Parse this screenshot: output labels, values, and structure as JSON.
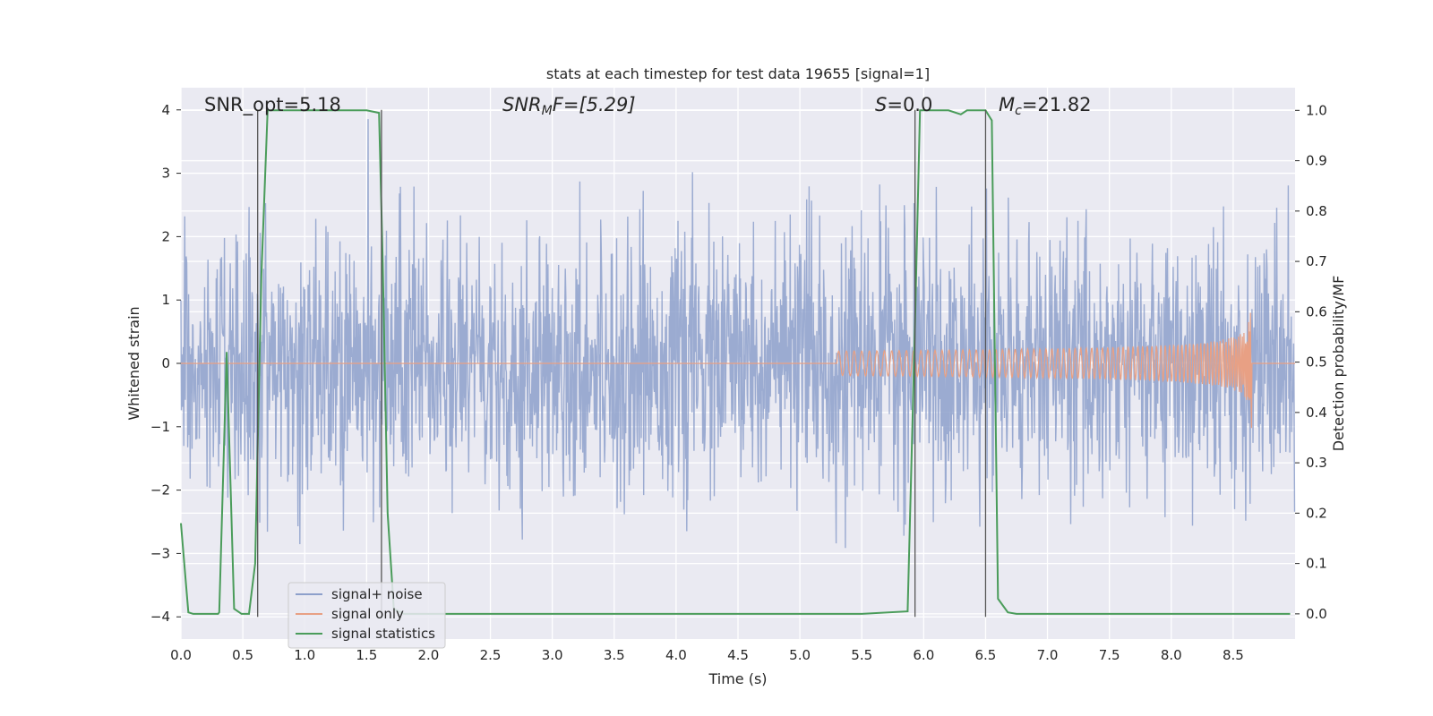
{
  "chart_data": {
    "type": "line",
    "title": "stats at each timestep for test data 19655 [signal=1]",
    "xlabel": "Time (s)",
    "ylabel": "Whitened strain",
    "y2label": "Detection probability/MF",
    "xlim": [
      0.0,
      9.0
    ],
    "ylim": [
      -4.35,
      4.35
    ],
    "y2lim": [
      -0.05,
      1.045
    ],
    "xticks": [
      "0.0",
      "0.5",
      "1.0",
      "1.5",
      "2.0",
      "2.5",
      "3.0",
      "3.5",
      "4.0",
      "4.5",
      "5.0",
      "5.5",
      "6.0",
      "6.5",
      "7.0",
      "7.5",
      "8.0",
      "8.5"
    ],
    "xtick_values": [
      0.0,
      0.5,
      1.0,
      1.5,
      2.0,
      2.5,
      3.0,
      3.5,
      4.0,
      4.5,
      5.0,
      5.5,
      6.0,
      6.5,
      7.0,
      7.5,
      8.0,
      8.5
    ],
    "yticks": [
      "−4",
      "−3",
      "−2",
      "−1",
      "0",
      "1",
      "2",
      "3",
      "4"
    ],
    "ytick_values": [
      -4,
      -3,
      -2,
      -1,
      0,
      1,
      2,
      3,
      4
    ],
    "y2ticks": [
      "0.0",
      "0.1",
      "0.2",
      "0.3",
      "0.4",
      "0.5",
      "0.6",
      "0.7",
      "0.8",
      "0.9",
      "1.0"
    ],
    "y2tick_values": [
      0.0,
      0.1,
      0.2,
      0.3,
      0.4,
      0.5,
      0.6,
      0.7,
      0.8,
      0.9,
      1.0
    ],
    "grid": true,
    "legend_position": "lower-left",
    "annotations": {
      "snr_opt": "SNR_opt=5.18",
      "snr_mf_italic": "SNR",
      "snr_mf_sub": "M",
      "snr_mf_rest": "F=[5.29]",
      "s_italic": "S",
      "s_rest": "=0.0",
      "mc_italic": "M",
      "mc_sub": "c",
      "mc_rest": "=21.82"
    },
    "series": [
      {
        "name": "signal+ noise",
        "color": "#8da0cb",
        "axis": "left",
        "noise_sigma": 1.0,
        "sample_rate_hz": 256
      },
      {
        "name": "signal only",
        "color": "#e8a084",
        "axis": "left",
        "chirp": {
          "merger_time": 8.65,
          "peak_amplitude": 1.1,
          "start_time": 5.3
        }
      },
      {
        "name": "signal statistics",
        "color": "#4a9c5a",
        "axis": "right",
        "x": [
          0.0,
          0.06,
          0.1,
          0.2,
          0.3,
          0.31,
          0.37,
          0.43,
          0.49,
          0.55,
          0.6,
          0.65,
          0.7,
          0.75,
          1.0,
          1.25,
          1.5,
          1.6,
          1.63,
          1.67,
          1.72,
          1.8,
          2.0,
          3.0,
          4.0,
          5.0,
          5.5,
          5.87,
          5.93,
          5.97,
          6.0,
          6.05,
          6.2,
          6.3,
          6.35,
          6.45,
          6.5,
          6.55,
          6.6,
          6.68,
          6.75,
          7.0,
          8.0,
          8.96
        ],
        "y": [
          0.18,
          0.003,
          0.0,
          0.0,
          0.0,
          0.003,
          0.52,
          0.01,
          0.0,
          0.0,
          0.1,
          0.67,
          1.0,
          1.0,
          1.0,
          1.0,
          1.0,
          0.995,
          0.7,
          0.2,
          0.01,
          0.0,
          0.0,
          0.0,
          0.0,
          0.0,
          0.0,
          0.005,
          0.58,
          1.0,
          1.0,
          1.0,
          1.0,
          0.992,
          1.0,
          1.0,
          1.0,
          0.98,
          0.03,
          0.003,
          0.0,
          0.0,
          0.0,
          0.0
        ]
      }
    ],
    "vertical_lines": [
      0.62,
      1.62,
      5.93,
      6.5
    ],
    "vertical_line_color": "#555555"
  }
}
